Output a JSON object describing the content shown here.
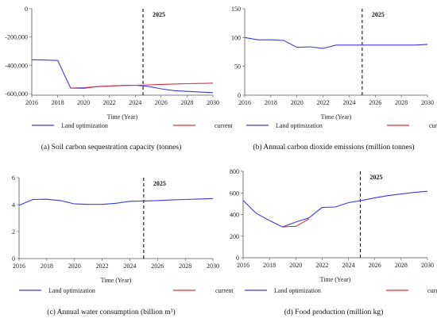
{
  "chart_data": [
    {
      "id": "a",
      "type": "line",
      "caption": "(a) Soil carbon sequestration capacity (tonnes)",
      "xlabel": "Time (Year)",
      "xlim": [
        2016,
        2030
      ],
      "xticks": [
        2016,
        2018,
        2020,
        2022,
        2024,
        2026,
        2028,
        2030
      ],
      "ylim": [
        -610000,
        0
      ],
      "yticks": [
        0,
        -200000,
        -400000,
        -600000
      ],
      "ytick_labels": [
        "0",
        "-200,000",
        "-400,000",
        "-600,000"
      ],
      "marker_year": 2024.6,
      "marker_label": "2025",
      "legend": [
        "Land optimization",
        "current"
      ],
      "series": [
        {
          "name": "Land optimization",
          "color": "#3b3bdc",
          "x": [
            2016,
            2017,
            2018,
            2019,
            2020,
            2021,
            2022,
            2023,
            2024,
            2025,
            2026,
            2027,
            2028,
            2029,
            2030
          ],
          "y": [
            -360000,
            -362000,
            -365000,
            -560000,
            -558000,
            -550000,
            -545000,
            -542000,
            -540000,
            -548000,
            -565000,
            -578000,
            -583000,
            -588000,
            -592000
          ]
        },
        {
          "name": "current",
          "color": "#e0303a",
          "x": [
            2019,
            2020,
            2021,
            2022,
            2023,
            2024,
            2025,
            2026,
            2027,
            2028,
            2029,
            2030
          ],
          "y": [
            -560000,
            -562000,
            -550000,
            -545000,
            -542000,
            -540000,
            -537000,
            -534000,
            -531000,
            -529000,
            -527000,
            -525000
          ]
        }
      ]
    },
    {
      "id": "b",
      "type": "line",
      "caption": "(b) Annual carbon dioxide emissions (million tonnes)",
      "xlabel": "Time (Year)",
      "xlim": [
        2016,
        2030
      ],
      "xticks": [
        2016,
        2018,
        2020,
        2022,
        2024,
        2026,
        2028,
        2030
      ],
      "ylim": [
        0,
        150
      ],
      "yticks": [
        0,
        50,
        100,
        150
      ],
      "ytick_labels": [
        "0",
        "50",
        "100",
        "150"
      ],
      "marker_year": 2025,
      "marker_label": "2025",
      "legend": [
        "Land optimization",
        "current"
      ],
      "series": [
        {
          "name": "Land optimization",
          "color": "#3b3bdc",
          "x": [
            2016,
            2017,
            2018,
            2019,
            2020,
            2021,
            2022,
            2023,
            2024,
            2025,
            2026,
            2027,
            2028,
            2029,
            2030
          ],
          "y": [
            100,
            96,
            96,
            95,
            83,
            84,
            81,
            87,
            87,
            87,
            87,
            87,
            87,
            87,
            88
          ]
        }
      ]
    },
    {
      "id": "c",
      "type": "line",
      "caption": "(c) Annual water consumption (billion m³)",
      "xlabel": "Time (Year)",
      "xlim": [
        2016,
        2030
      ],
      "xticks": [
        2016,
        2018,
        2020,
        2022,
        2024,
        2026,
        2028,
        2030
      ],
      "ylim": [
        0,
        6
      ],
      "yticks": [
        0,
        2,
        4,
        6
      ],
      "ytick_labels": [
        "0",
        "2",
        "4",
        "6"
      ],
      "marker_year": 2025,
      "marker_label": "2025",
      "legend": [
        "Land optimization",
        "current"
      ],
      "series": [
        {
          "name": "Land optimization",
          "color": "#3b3bdc",
          "x": [
            2016,
            2017,
            2018,
            2019,
            2020,
            2021,
            2022,
            2023,
            2024,
            2025,
            2026,
            2027,
            2028,
            2029,
            2030
          ],
          "y": [
            3.95,
            4.38,
            4.4,
            4.3,
            4.05,
            4.02,
            4.02,
            4.1,
            4.25,
            4.27,
            4.3,
            4.35,
            4.38,
            4.42,
            4.45
          ]
        }
      ]
    },
    {
      "id": "d",
      "type": "line",
      "caption": "(d) Food production (million kg)",
      "xlabel": "Time (Year)",
      "xlim": [
        2016,
        2030
      ],
      "xticks": [
        2016,
        2018,
        2020,
        2022,
        2024,
        2026,
        2028,
        2030
      ],
      "ylim": [
        0,
        800
      ],
      "yticks": [
        0,
        200,
        400,
        600,
        800
      ],
      "ytick_labels": [
        "0",
        "200",
        "400",
        "600",
        "800"
      ],
      "marker_year": 2024.9,
      "marker_label": "2025",
      "legend": [
        "Land optimization",
        "current"
      ],
      "series": [
        {
          "name": "current",
          "color": "#e0303a",
          "x": [
            2019,
            2019.5,
            2020,
            2021
          ],
          "y": [
            285,
            290,
            290,
            360
          ]
        },
        {
          "name": "Land optimization",
          "color": "#3b3bdc",
          "x": [
            2016,
            2017,
            2018,
            2019,
            2020,
            2021,
            2022,
            2023,
            2024,
            2025,
            2026,
            2027,
            2028,
            2029,
            2030
          ],
          "y": [
            530,
            410,
            345,
            285,
            330,
            370,
            465,
            470,
            510,
            530,
            555,
            575,
            590,
            605,
            615
          ]
        }
      ]
    }
  ]
}
